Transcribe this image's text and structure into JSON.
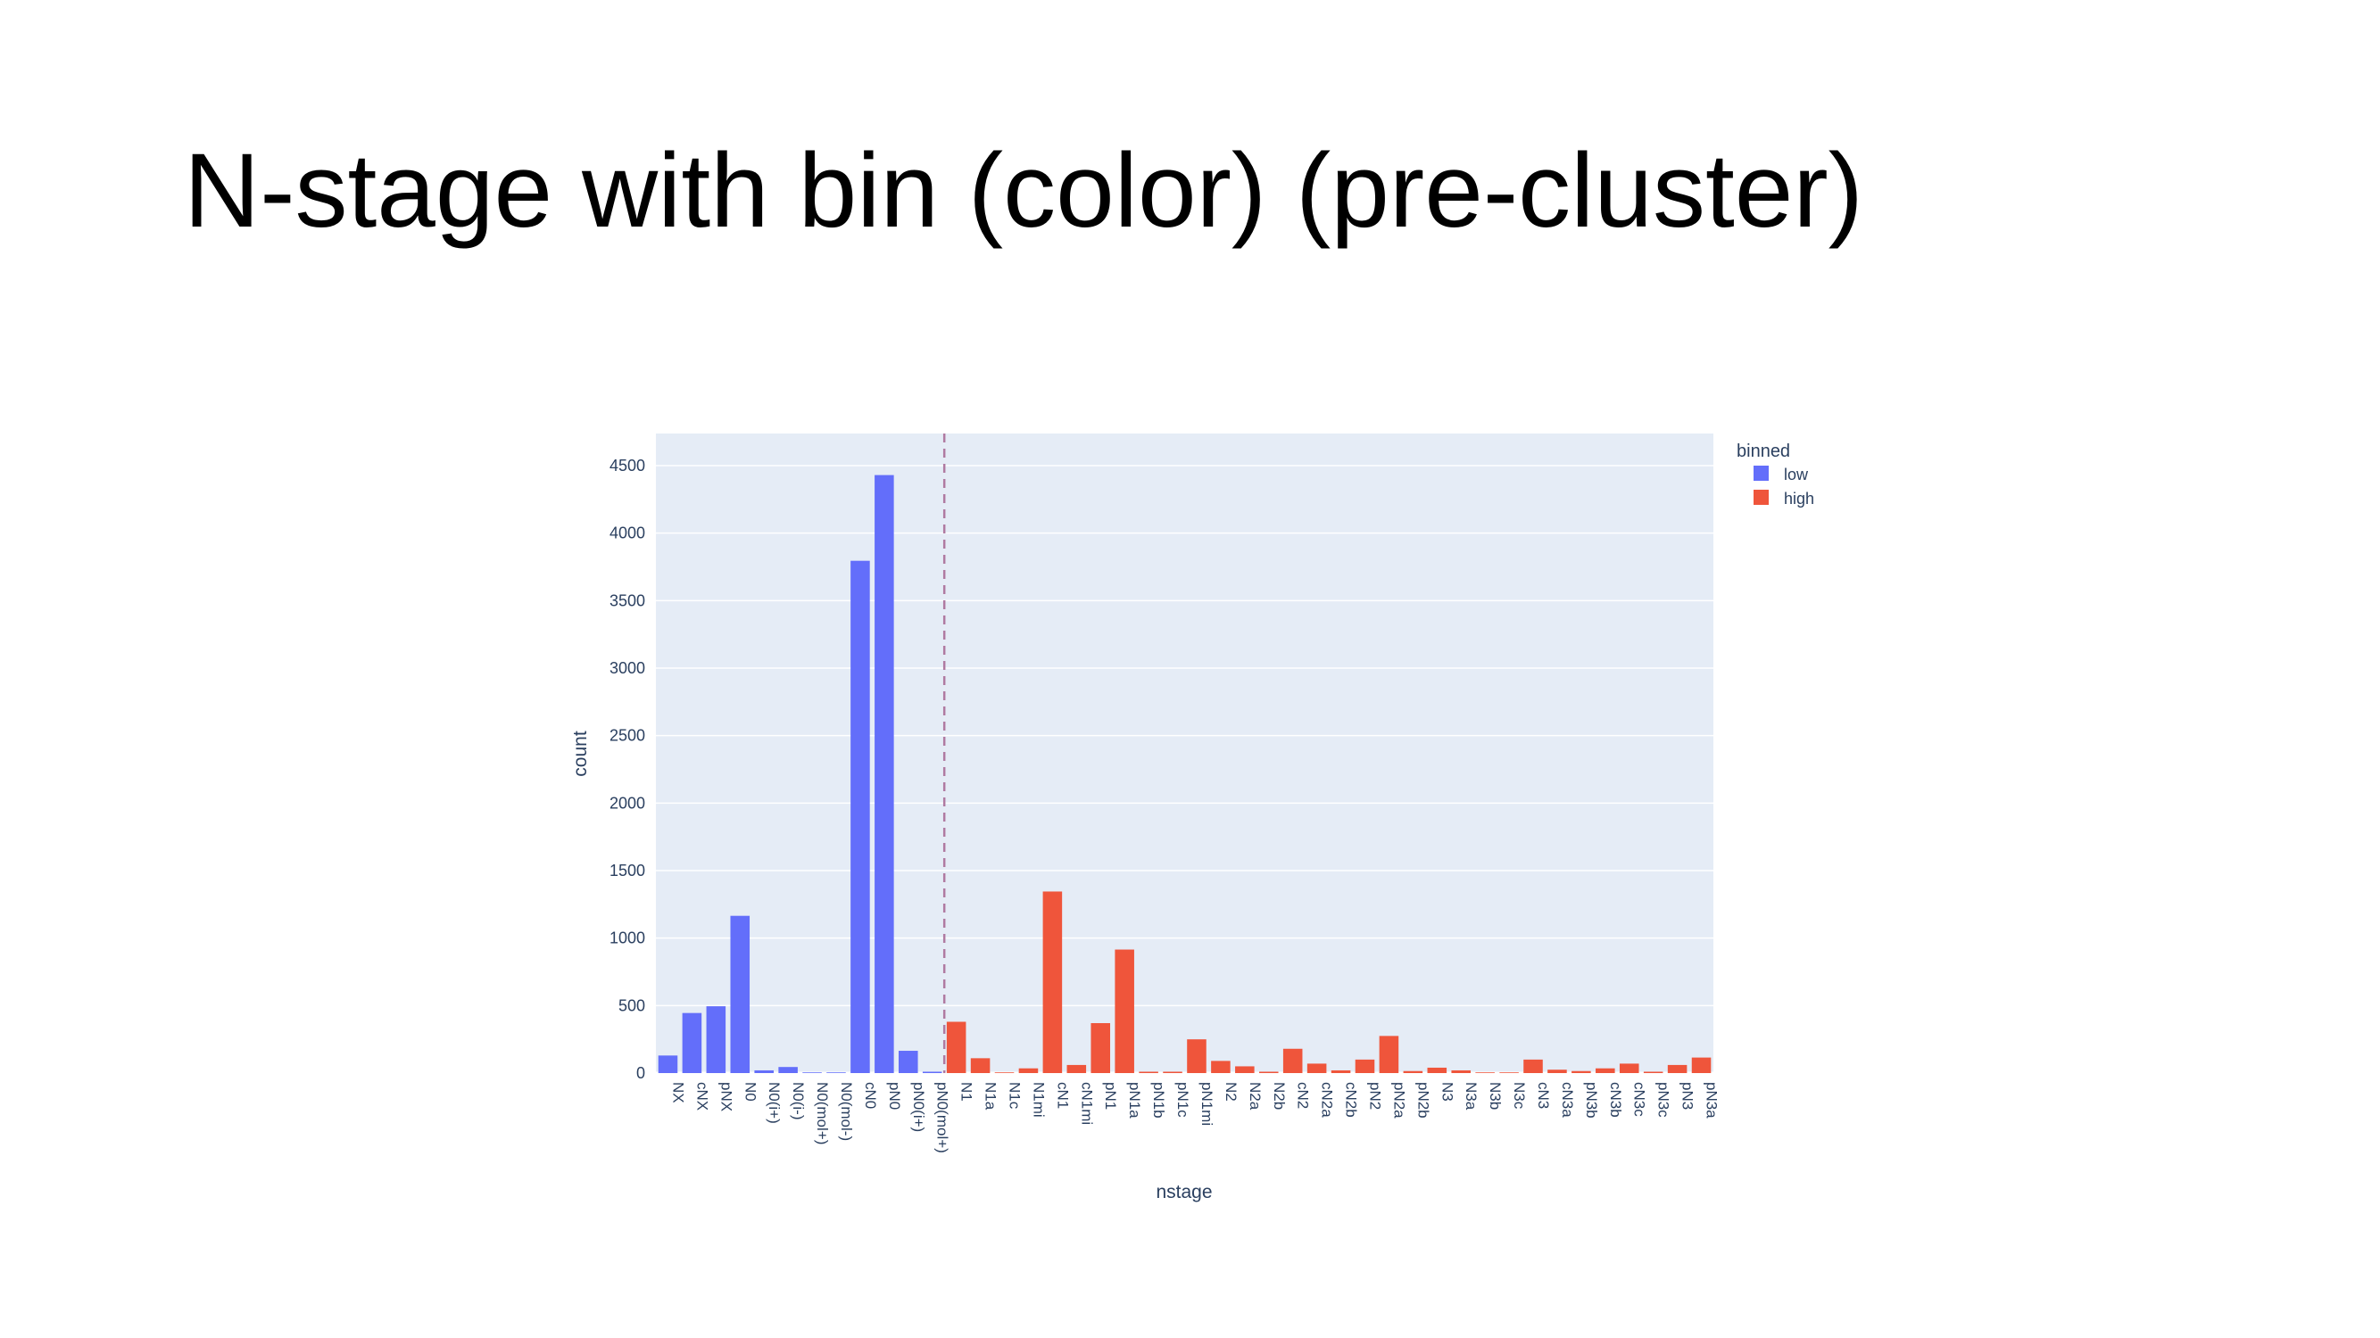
{
  "slide": {
    "title": "N-stage with bin (color) (pre-cluster)"
  },
  "chart_data": {
    "type": "bar",
    "xlabel": "nstage",
    "ylabel": "count",
    "ylim": [
      0,
      4600
    ],
    "yticks": [
      0,
      500,
      1000,
      1500,
      2000,
      2500,
      3000,
      3500,
      4000,
      4500
    ],
    "grid": true,
    "legend": {
      "title": "binned",
      "placement": "top-right"
    },
    "divider_after_category": "pN0(mol+)",
    "categories": [
      "NX",
      "cNX",
      "pNX",
      "N0",
      "N0(i+)",
      "N0(i-)",
      "N0(mol+)",
      "N0(mol-)",
      "cN0",
      "pN0",
      "pN0(i+)",
      "pN0(mol+)",
      "N1",
      "N1a",
      "N1c",
      "N1mi",
      "cN1",
      "cN1mi",
      "pN1",
      "pN1a",
      "pN1b",
      "pN1c",
      "pN1mi",
      "N2",
      "N2a",
      "N2b",
      "cN2",
      "cN2a",
      "cN2b",
      "pN2",
      "pN2a",
      "pN2b",
      "N3",
      "N3a",
      "N3b",
      "N3c",
      "cN3",
      "cN3a",
      "pN3b",
      "cN3b",
      "cN3c",
      "pN3c",
      "pN3",
      "pN3a"
    ],
    "series": [
      {
        "name": "low",
        "color": "#636efa",
        "values": [
          130,
          445,
          495,
          1165,
          20,
          45,
          5,
          5,
          3795,
          4430,
          165,
          10,
          null,
          null,
          null,
          null,
          null,
          null,
          null,
          null,
          null,
          null,
          null,
          null,
          null,
          null,
          null,
          null,
          null,
          null,
          null,
          null,
          null,
          null,
          null,
          null,
          null,
          null,
          null,
          null,
          null,
          null,
          null,
          null
        ]
      },
      {
        "name": "high",
        "color": "#ef553b",
        "values": [
          null,
          null,
          null,
          null,
          null,
          null,
          null,
          null,
          null,
          null,
          null,
          null,
          380,
          110,
          5,
          35,
          1345,
          60,
          370,
          915,
          10,
          10,
          250,
          90,
          50,
          10,
          180,
          70,
          20,
          100,
          275,
          15,
          40,
          20,
          5,
          5,
          100,
          25,
          15,
          35,
          70,
          10,
          60,
          115
        ]
      }
    ]
  }
}
